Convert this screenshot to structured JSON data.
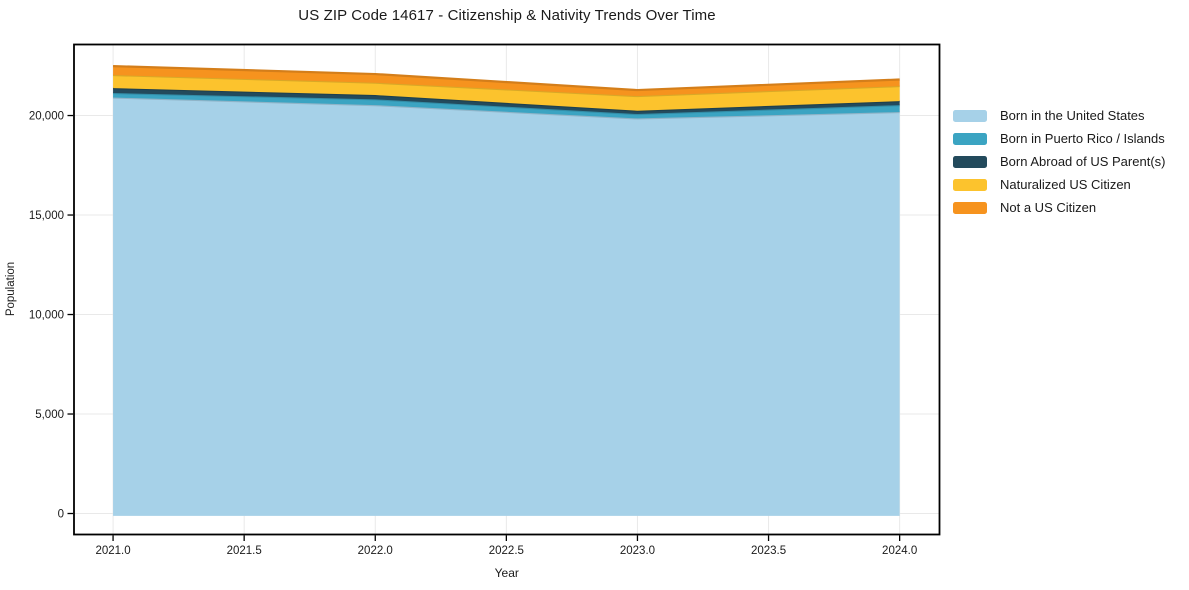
{
  "chart_data": {
    "type": "area",
    "stacked": true,
    "title": "US ZIP Code 14617 - Citizenship & Nativity Trends Over Time",
    "xlabel": "Year",
    "ylabel": "Population",
    "x": [
      2021,
      2022,
      2023,
      2024
    ],
    "x_ticks": [
      2021.0,
      2021.5,
      2022.0,
      2022.5,
      2023.0,
      2023.5,
      2024.0
    ],
    "x_tick_labels": [
      "2021.0",
      "2021.5",
      "2022.0",
      "2022.5",
      "2023.0",
      "2023.5",
      "2024.0"
    ],
    "y_ticks": [
      0,
      5000,
      10000,
      15000,
      20000
    ],
    "y_tick_labels": [
      "0",
      "5,000",
      "10,000",
      "15,000",
      "20,000"
    ],
    "xlim": [
      2020.851,
      2024.152
    ],
    "ylim": [
      -1055,
      23570
    ],
    "grid": true,
    "grid_color": "#e9e9e9",
    "frame_color": "#000000",
    "legend_position": "right-outside",
    "series": [
      {
        "name": "Born in the United States",
        "color": "#a6d1e8",
        "values": [
          20905,
          20525,
          19855,
          20175
        ]
      },
      {
        "name": "Born in Puerto Rico / Islands",
        "color": "#3ba4c2",
        "values": [
          225,
          290,
          220,
          350
        ]
      },
      {
        "name": "Born Abroad of US Parent(s)",
        "color": "#234a5c",
        "values": [
          250,
          215,
          165,
          200
        ]
      },
      {
        "name": "Naturalized US Citizen",
        "color": "#fcc32d",
        "values": [
          655,
          620,
          740,
          755
        ]
      },
      {
        "name": "Not a US Citizen",
        "color": "#f6931e",
        "values": [
          450,
          435,
          300,
          330
        ]
      }
    ],
    "totals": [
      22485,
      22085,
      21280,
      21810
    ]
  }
}
